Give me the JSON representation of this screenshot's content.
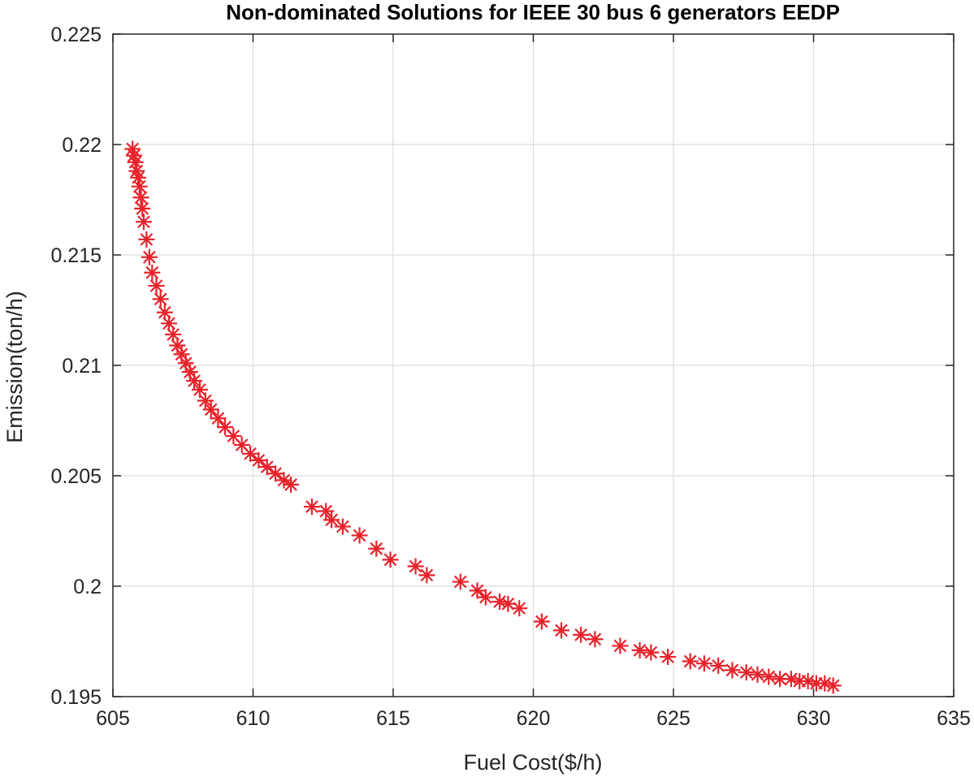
{
  "chart_data": {
    "type": "scatter",
    "title": "Non-dominated Solutions for IEEE 30 bus 6 generators EEDP",
    "xlabel": "Fuel Cost($/h)",
    "ylabel": "Emission(ton/h)",
    "xlim": [
      605,
      635
    ],
    "ylim": [
      0.195,
      0.225
    ],
    "xticks": [
      "605",
      "610",
      "615",
      "620",
      "625",
      "630",
      "635"
    ],
    "yticks": [
      "0.195",
      "0.2",
      "0.205",
      "0.21",
      "0.215",
      "0.22",
      "0.225"
    ],
    "grid": true,
    "marker": "asterisk",
    "colors": {
      "marker": "#e8222a",
      "axis": "#262626",
      "grid": "#dcdcdc"
    },
    "series": [
      {
        "x": [
          605.7,
          605.75,
          605.8,
          605.85,
          605.9,
          605.95,
          606.0,
          606.05,
          606.1,
          606.2,
          606.3,
          606.4,
          606.55,
          606.7,
          606.85,
          607.0,
          607.15,
          607.3,
          607.45,
          607.6,
          607.75,
          607.9,
          608.1,
          608.3,
          608.5,
          608.75,
          609.0,
          609.3,
          609.6,
          609.9,
          610.2,
          610.5,
          610.8,
          611.1,
          611.35,
          612.1,
          612.6,
          612.8,
          613.2,
          613.8,
          614.4,
          614.9,
          615.8,
          616.2,
          617.4,
          618.0,
          618.3,
          618.8,
          619.1,
          619.5,
          620.3,
          621.0,
          621.7,
          622.2,
          623.1,
          623.8,
          624.2,
          624.8,
          625.6,
          626.1,
          626.6,
          627.1,
          627.6,
          628.0,
          628.4,
          628.8,
          629.2,
          629.5,
          629.8,
          630.1,
          630.4,
          630.7
        ],
        "y": [
          0.2198,
          0.2195,
          0.2192,
          0.2188,
          0.2185,
          0.2181,
          0.2176,
          0.2171,
          0.2165,
          0.2157,
          0.2149,
          0.2142,
          0.2136,
          0.213,
          0.2124,
          0.2119,
          0.2114,
          0.2109,
          0.2105,
          0.2101,
          0.2097,
          0.2093,
          0.2089,
          0.2084,
          0.208,
          0.2076,
          0.2072,
          0.2068,
          0.2064,
          0.206,
          0.2057,
          0.2054,
          0.2051,
          0.2048,
          0.2046,
          0.2036,
          0.2034,
          0.203,
          0.2027,
          0.2023,
          0.2017,
          0.2012,
          0.2009,
          0.2005,
          0.2002,
          0.1998,
          0.1995,
          0.1993,
          0.1992,
          0.199,
          0.1984,
          0.198,
          0.1978,
          0.1976,
          0.1973,
          0.1971,
          0.197,
          0.1968,
          0.1966,
          0.1965,
          0.1964,
          0.1962,
          0.1961,
          0.196,
          0.1959,
          0.1958,
          0.1958,
          0.1957,
          0.1957,
          0.1956,
          0.1956,
          0.1955
        ]
      }
    ]
  }
}
